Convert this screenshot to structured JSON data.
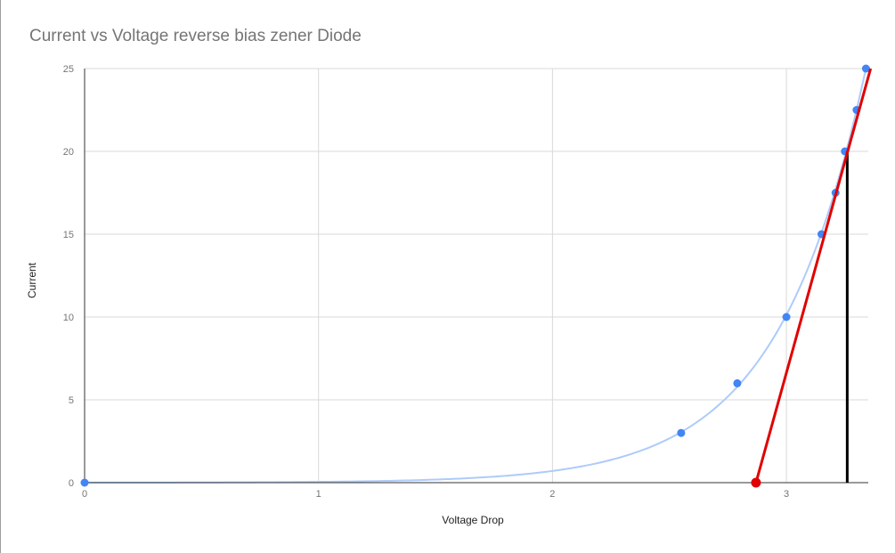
{
  "chart_data": {
    "type": "scatter",
    "title": "Current vs Voltage reverse bias zener Diode",
    "xlabel": "Voltage Drop",
    "ylabel": "Current",
    "xlim": [
      0,
      3.35
    ],
    "ylim": [
      0,
      25
    ],
    "x_ticks": [
      0,
      1,
      2,
      3
    ],
    "y_ticks": [
      0,
      5,
      10,
      15,
      20,
      25
    ],
    "grid": true,
    "legend": "none",
    "points": [
      {
        "x": 0,
        "y": 0
      },
      {
        "x": 2.55,
        "y": 3
      },
      {
        "x": 2.79,
        "y": 6
      },
      {
        "x": 3.0,
        "y": 10
      },
      {
        "x": 3.15,
        "y": 15
      },
      {
        "x": 3.21,
        "y": 17.5
      },
      {
        "x": 3.25,
        "y": 20
      },
      {
        "x": 3.3,
        "y": 22.5
      },
      {
        "x": 3.34,
        "y": 25
      }
    ],
    "trendline": {
      "type": "exponential",
      "color": "#aecbfa"
    },
    "tangent_line": {
      "x1": 2.87,
      "y1": 0,
      "x2": 3.36,
      "y2": 25,
      "color": "#e00000"
    },
    "tangent_point": {
      "x": 2.87,
      "y": 0,
      "color": "#e00000"
    },
    "vertical_marker": {
      "x": 3.26,
      "y_from": 0,
      "y_to": 20,
      "color": "#000000"
    },
    "colors": {
      "points": "#4285f4",
      "grid": "#d9d9d9",
      "axis": "#333333",
      "tick_text": "#757575"
    }
  }
}
